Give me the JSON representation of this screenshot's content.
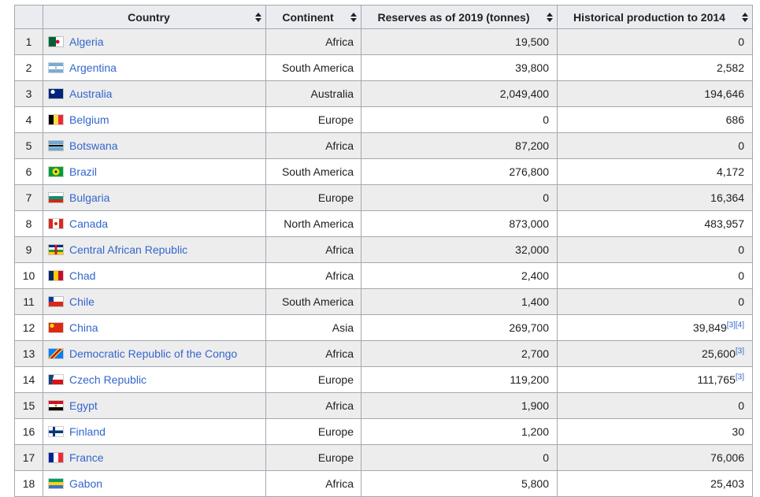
{
  "colors": {
    "header_bg": "#eaecf0",
    "border": "#a2a9b1",
    "link_blue": "#3366cc",
    "stripe": "#ededed"
  },
  "table": {
    "headers": [
      {
        "label": "",
        "sortable": false
      },
      {
        "label": "Country",
        "sortable": true
      },
      {
        "label": "Continent",
        "sortable": true
      },
      {
        "label": "Reserves as of 2019 (tonnes)",
        "sortable": true
      },
      {
        "label": "Historical production to 2014",
        "sortable": true
      }
    ],
    "rows": [
      {
        "rank": "1",
        "country": "Algeria",
        "continent": "Africa",
        "reserves": "19,500",
        "historical": "0",
        "refs": [],
        "flag": "radial-gradient(circle at 62% 50%,#d21034 18%,transparent 19%),linear-gradient(to right,#006233 50%,#fff 50%)"
      },
      {
        "rank": "2",
        "country": "Argentina",
        "continent": "South America",
        "reserves": "39,800",
        "historical": "2,582",
        "refs": [],
        "flag": "radial-gradient(circle at 50% 50%,#f6b40e 12%,transparent 13%),linear-gradient(to bottom,#74acdf 33%,#fff 33%,#fff 67%,#74acdf 67%)"
      },
      {
        "rank": "3",
        "country": "Australia",
        "continent": "Australia",
        "reserves": "2,049,400",
        "historical": "194,646",
        "refs": [],
        "flag": "radial-gradient(circle at 28% 30%,#fff 16%,transparent 17%),linear-gradient(#00247d,#00247d)"
      },
      {
        "rank": "4",
        "country": "Belgium",
        "continent": "Europe",
        "reserves": "0",
        "historical": "686",
        "refs": [],
        "flag": "linear-gradient(to right,#000 33%,#fae042 33%,#fae042 67%,#ed2939 67%)"
      },
      {
        "rank": "5",
        "country": "Botswana",
        "continent": "Africa",
        "reserves": "87,200",
        "historical": "0",
        "refs": [],
        "flag": "linear-gradient(to bottom,#6da9d2 36%,#fff 36%,#fff 43%,#000 43%,#000 57%,#fff 57%,#fff 64%,#6da9d2 64%)"
      },
      {
        "rank": "6",
        "country": "Brazil",
        "continent": "South America",
        "reserves": "276,800",
        "historical": "4,172",
        "refs": [],
        "flag": "radial-gradient(circle at 50% 50%,#002776 15%,#ffdf00 16%,#ffdf00 40%,#009c3b 41%)"
      },
      {
        "rank": "7",
        "country": "Bulgaria",
        "continent": "Europe",
        "reserves": "0",
        "historical": "16,364",
        "refs": [],
        "flag": "linear-gradient(to bottom,#fff 33%,#00966e 33%,#00966e 67%,#d62612 67%)"
      },
      {
        "rank": "8",
        "country": "Canada",
        "continent": "North America",
        "reserves": "873,000",
        "historical": "483,957",
        "refs": [],
        "flag": "radial-gradient(circle at 50% 50%,#d52b1e 18%,transparent 19%),linear-gradient(to right,#d52b1e 27%,#fff 27%,#fff 73%,#d52b1e 73%)"
      },
      {
        "rank": "9",
        "country": "Central African Republic",
        "continent": "Africa",
        "reserves": "32,000",
        "historical": "0",
        "refs": [],
        "flag": "linear-gradient(to right,transparent 42%,#d21034 42%,#d21034 58%,transparent 58%),linear-gradient(to bottom,#003082 25%,#fff 25%,#fff 50%,#289728 50%,#289728 75%,#ffce00 75%)"
      },
      {
        "rank": "10",
        "country": "Chad",
        "continent": "Africa",
        "reserves": "2,400",
        "historical": "0",
        "refs": [],
        "flag": "linear-gradient(to right,#002664 33%,#fecb00 33%,#fecb00 67%,#c60c30 67%)"
      },
      {
        "rank": "11",
        "country": "Chile",
        "continent": "South America",
        "reserves": "1,400",
        "historical": "0",
        "refs": [],
        "flag": "linear-gradient(to bottom,transparent 50%,#d52b1e 50%),linear-gradient(to right,#0039a6 33%,#fff 33%)"
      },
      {
        "rank": "12",
        "country": "China",
        "continent": "Asia",
        "reserves": "269,700",
        "historical": "39,849",
        "refs": [
          "[3]",
          "[4]"
        ],
        "flag": "radial-gradient(circle at 22% 30%,#ffde00 15%,transparent 16%),linear-gradient(#de2910,#de2910)"
      },
      {
        "rank": "13",
        "country": "Democratic Republic of the Congo",
        "continent": "Africa",
        "reserves": "2,700",
        "historical": "25,600",
        "refs": [
          "[3]"
        ],
        "flag": "linear-gradient(135deg,#007fff 38%,#f7d618 38%,#f7d618 44%,#ce1021 44%,#ce1021 56%,#f7d618 56%,#f7d618 62%,#007fff 62%)"
      },
      {
        "rank": "14",
        "country": "Czech Republic",
        "continent": "Europe",
        "reserves": "119,200",
        "historical": "111,765",
        "refs": [
          "[3]"
        ],
        "flag": "linear-gradient(105deg,#11457e 30%,transparent 30%),linear-gradient(to bottom,#fff 50%,#d7141a 50%)"
      },
      {
        "rank": "15",
        "country": "Egypt",
        "continent": "Africa",
        "reserves": "1,900",
        "historical": "0",
        "refs": [],
        "flag": "radial-gradient(circle at 50% 50%,#c09300 13%,transparent 14%),linear-gradient(to bottom,#ce1126 33%,#fff 33%,#fff 67%,#000 67%)"
      },
      {
        "rank": "16",
        "country": "Finland",
        "continent": "Europe",
        "reserves": "1,200",
        "historical": "30",
        "refs": [],
        "flag": "linear-gradient(to right,transparent 28%,#003580 28%,#003580 44%,transparent 44%),linear-gradient(to bottom,#fff 38%,#003580 38%,#003580 66%,#fff 66%)"
      },
      {
        "rank": "17",
        "country": "France",
        "continent": "Europe",
        "reserves": "0",
        "historical": "76,006",
        "refs": [],
        "flag": "linear-gradient(to right,#002395 33%,#fff 33%,#fff 67%,#ed2939 67%)"
      },
      {
        "rank": "18",
        "country": "Gabon",
        "continent": "Africa",
        "reserves": "5,800",
        "historical": "25,403",
        "refs": [],
        "flag": "linear-gradient(to bottom,#009e60 33%,#fcd116 33%,#fcd116 67%,#3a75c4 67%)"
      }
    ]
  }
}
